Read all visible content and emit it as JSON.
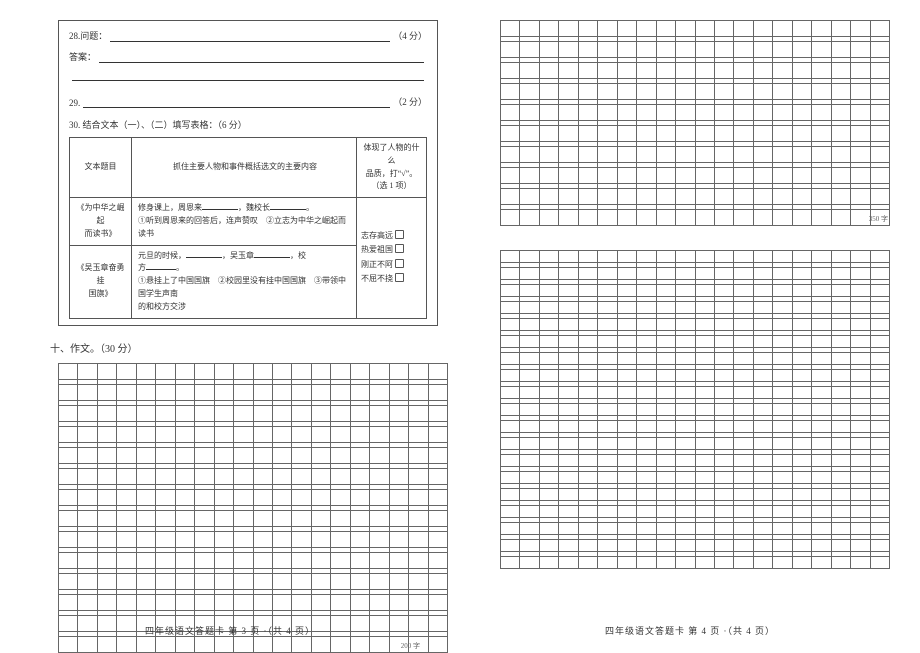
{
  "q28": {
    "label": "28.问题：",
    "score": "（4 分）"
  },
  "answerLabel": "答案：",
  "q29": {
    "label": "29.",
    "score": "（2 分）"
  },
  "q30": "30. 结合文本（一）、（二）填写表格：（6 分）",
  "table": {
    "head": {
      "c1": "文本题目",
      "c2": "抓住主要人物和事件概括选文的主要内容",
      "c3top": "体现了人物的什么",
      "c3mid": "品质，打“√”。",
      "c3bot": "（选 1 项）"
    },
    "row1": {
      "title1": "《为中华之崛起",
      "title2": "而读书》",
      "line1a": "修身课上，周恩来",
      "line1b": "，魏校长",
      "line1c": "。",
      "line2": "①听到周恩来的回答后，连声赞叹　②立志为中华之崛起而读书"
    },
    "row2": {
      "title1": "《吴玉章奋勇挂",
      "title2": "国旗》",
      "line1a": "元旦的时候，",
      "line1b": "，吴玉章",
      "line1c": "，校",
      "line1d": "方",
      "line1e": "。",
      "line2": "①悬挂上了中国国旗　②校园里没有挂中国国旗　③带领中国学生声南",
      "line3": "的和校方交涉"
    },
    "opts": {
      "o1": "志存高远",
      "o2": "热爱祖国",
      "o3": "刚正不阿",
      "o4": "不屈不挠"
    }
  },
  "sectionTitle": "十、作文。（30 分）",
  "count200": "200 字",
  "count350": "350 字",
  "footerLeft": "四年级语文答题卡 第 3 页 ·（共 4 页）",
  "footerRight": "四年级语文答题卡 第 4 页 ·（共 4 页）",
  "gridLeft": {
    "cols": 20,
    "bigRows": 14
  },
  "gridRight": {
    "cols": 20,
    "bigRows": 10,
    "bigRows2": 19
  }
}
